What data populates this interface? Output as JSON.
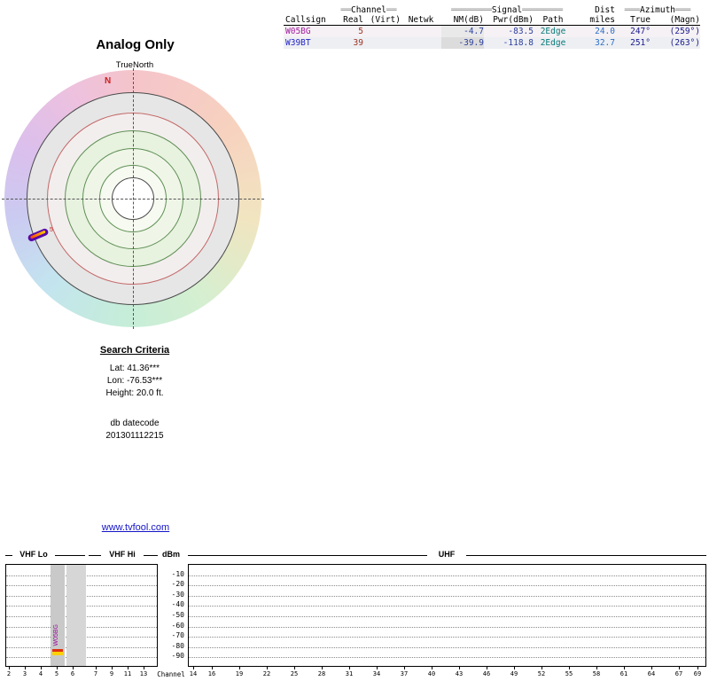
{
  "radar": {
    "title": "Analog Only",
    "north_label": "TrueNorth",
    "n_marker": "N",
    "blip_channel_label": "5"
  },
  "search": {
    "heading": "Search Criteria",
    "lat": "Lat: 41.36***",
    "lon": "Lon: -76.53***",
    "height": "Height: 20.0 ft.",
    "datecode_label": "db datecode",
    "datecode": "201301112215"
  },
  "link": "www.tvfool.com",
  "table": {
    "group_headers": {
      "channel_bars": "══",
      "channel": "Channel",
      "signal_bars": "════════",
      "signal": "Signal",
      "dist": "Dist",
      "azimuth_bars": "═══",
      "azimuth": "Azimuth"
    },
    "columns": [
      "Callsign",
      "Real",
      "(Virt)",
      "Netwk",
      "NM(dB)",
      "Pwr(dBm)",
      "Path",
      "miles",
      "True",
      "(Magn)"
    ],
    "rows": [
      {
        "callsign": "W05BG",
        "real": "5",
        "virt": "",
        "netwk": "",
        "nm": "-4.7",
        "pwr": "-83.5",
        "path": "2Edge",
        "miles": "24.0",
        "true_az": "247°",
        "magn": "(259°)"
      },
      {
        "callsign": "W39BT",
        "real": "39",
        "virt": "",
        "netwk": "",
        "nm": "-39.9",
        "pwr": "-118.8",
        "path": "2Edge",
        "miles": "32.7",
        "true_az": "251°",
        "magn": "(263°)"
      }
    ]
  },
  "chart": {
    "sections": {
      "vhf_lo": "VHF Lo",
      "vhf_hi": "VHF Hi",
      "dbm": "dBm",
      "uhf": "UHF"
    },
    "channel_axis_label": "Channel",
    "dbm_ticks": [
      "-10",
      "-20",
      "-30",
      "-40",
      "-50",
      "-60",
      "-70",
      "-80",
      "-90"
    ],
    "vhf_lo_channels": [
      "2",
      "3",
      "4",
      "5",
      "6"
    ],
    "vhf_hi_channels": [
      "7",
      "9",
      "11",
      "13"
    ],
    "uhf_channels": [
      "14",
      "16",
      "19",
      "22",
      "25",
      "28",
      "31",
      "34",
      "37",
      "40",
      "43",
      "46",
      "49",
      "52",
      "55",
      "58",
      "61",
      "64",
      "67",
      "69"
    ],
    "band_label": "W05BG"
  },
  "colors": {
    "callsign_w05bg": "#a020a0",
    "callsign_w39bt": "#2525c8",
    "north_marker_red": "#cc2222",
    "blip_purple": "#5a0aa8",
    "blip_yellow": "#ffd000",
    "blip_red": "#ff4400",
    "band_gray": "#c9c9c9",
    "link_blue": "#1515c8"
  },
  "chart_data": [
    {
      "type": "table",
      "title": "Analog Only",
      "columns": [
        "Callsign",
        "Real Channel",
        "Virt",
        "Netwk",
        "NM(dB)",
        "Pwr(dBm)",
        "Path",
        "Dist miles",
        "Azimuth True",
        "Azimuth Magn"
      ],
      "rows": [
        [
          "W05BG",
          5,
          "",
          "",
          -4.7,
          -83.5,
          "2Edge",
          24.0,
          "247°",
          "(259°)"
        ],
        [
          "W39BT",
          39,
          "",
          "",
          -39.9,
          -118.8,
          "2Edge",
          32.7,
          "251°",
          "(263°)"
        ]
      ]
    },
    {
      "type": "scatter",
      "title": "Azimuth radar plot (TrueNorth)",
      "points": [
        {
          "label": "5",
          "callsign": "W05BG",
          "azimuth_true_deg": 247,
          "azimuth_magn_deg": 259
        }
      ]
    },
    {
      "type": "bar",
      "title": "Channel spectrum",
      "xlabel": "Channel",
      "ylabel": "dBm",
      "ylim": [
        -100,
        0
      ],
      "series": [
        {
          "name": "W05BG",
          "channel": 5,
          "power_dbm": -83.5
        },
        {
          "name": "W39BT",
          "channel": 39,
          "power_dbm": -118.8
        }
      ],
      "x_sections": [
        "VHF Lo (2-6)",
        "VHF Hi (7-13)",
        "UHF (14-69)"
      ]
    }
  ]
}
